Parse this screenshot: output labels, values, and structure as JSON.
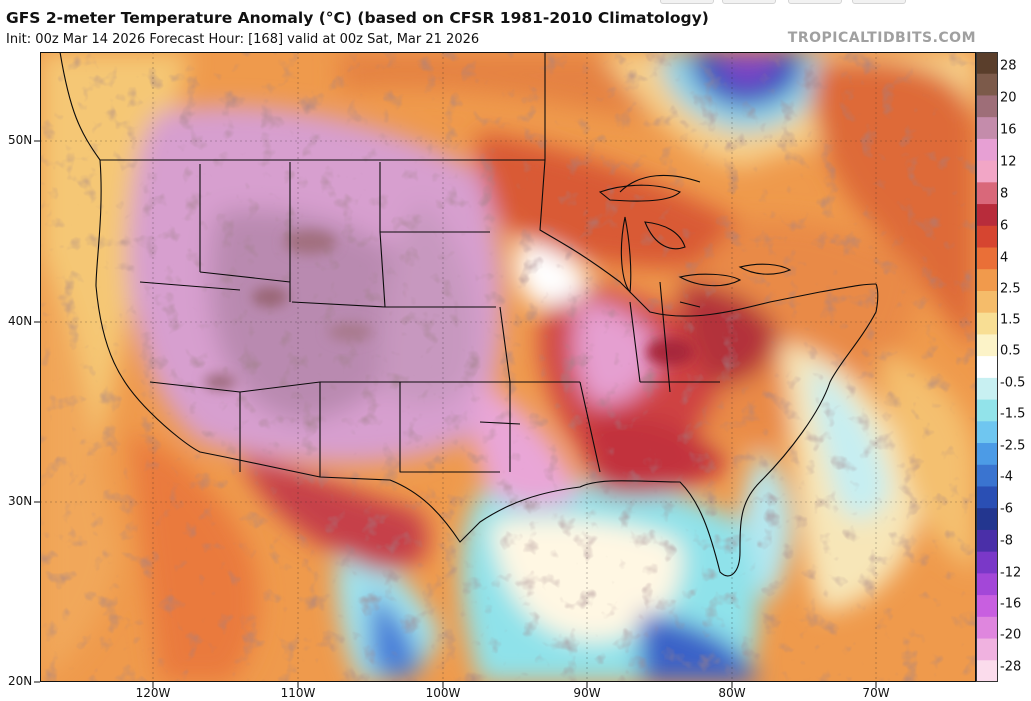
{
  "header": {
    "title": "GFS 2-meter Temperature Anomaly (°C) (based on CFSR 1981-2010 Climatology)",
    "subtitle": "Init: 00z Mar 14 2026   Forecast Hour: [168]   valid at 00z Sat, Mar 21 2026",
    "watermark": "TROPICALTIDBITS.COM"
  },
  "axes": {
    "lat_labels": [
      "50N",
      "40N",
      "30N",
      "20N"
    ],
    "lon_labels": [
      "120W",
      "110W",
      "100W",
      "90W",
      "80W",
      "70W"
    ]
  },
  "colorbar": {
    "labels": [
      "28",
      "20",
      "16",
      "12",
      "8",
      "6",
      "4",
      "2.5",
      "1.5",
      "0.5",
      "-0.5",
      "-1.5",
      "-2.5",
      "-4",
      "-6",
      "-8",
      "-12",
      "-16",
      "-20",
      "-28"
    ],
    "colors": [
      "#5a3e2b",
      "#7c5a4a",
      "#9e6e78",
      "#c48cab",
      "#e7a0d4",
      "#f2a6c6",
      "#d9687a",
      "#b82c3b",
      "#d64530",
      "#ea6f37",
      "#f19a4c",
      "#f5bc6a",
      "#f8de94",
      "#fcf3c8",
      "#ffffff",
      "#c8f0f2",
      "#92e3ea",
      "#6fc6f0",
      "#4c9be6",
      "#3a74d0",
      "#2a4fb4",
      "#23368f",
      "#4a2fa8",
      "#7a38c8",
      "#a347d8",
      "#c85fe0",
      "#df86de",
      "#f0b2e0",
      "#fbdcec"
    ]
  },
  "map_legend": {
    "warm_accent": "#d9663c",
    "hot_accent": "#e29be0",
    "cold_accent": "#8ee2ea",
    "deep_cold_accent": "#3a5fc8"
  }
}
